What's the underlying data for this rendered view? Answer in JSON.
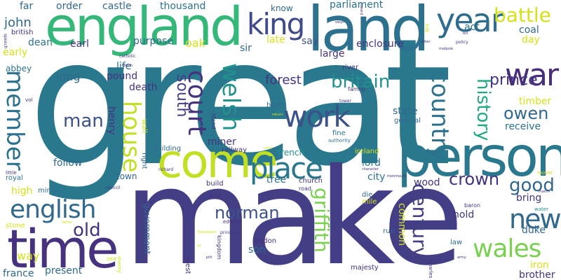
{
  "palette": {
    "dark_purple": "#46327e",
    "purple": "#482878",
    "slate": "#3b528b",
    "steel": "#31688e",
    "teal": "#21918c",
    "sea": "#1f9e89",
    "green": "#35b779",
    "lime": "#6ece58",
    "yellow_green": "#b5de2b",
    "yellow": "#d5e21a"
  },
  "words": [
    {
      "id": "great",
      "text": "great"
    },
    {
      "id": "make",
      "text": "make"
    },
    {
      "id": "england",
      "text": "england"
    },
    {
      "id": "land",
      "text": "land"
    },
    {
      "id": "person",
      "text": "person"
    },
    {
      "id": "come",
      "text": "come"
    },
    {
      "id": "time",
      "text": "time"
    },
    {
      "id": "king",
      "text": "king"
    },
    {
      "id": "year",
      "text": "year"
    },
    {
      "id": "war",
      "text": "war"
    },
    {
      "id": "place",
      "text": "place"
    },
    {
      "id": "work",
      "text": "work"
    },
    {
      "id": "english",
      "text": "english"
    },
    {
      "id": "wales",
      "text": "wales"
    },
    {
      "id": "new",
      "text": "new"
    },
    {
      "id": "battle",
      "text": "battle"
    },
    {
      "id": "country",
      "text": "country"
    },
    {
      "id": "court",
      "text": "court"
    },
    {
      "id": "welsh",
      "text": "welsh"
    },
    {
      "id": "house",
      "text": "house"
    },
    {
      "id": "member",
      "text": "member"
    },
    {
      "id": "britain",
      "text": "britain"
    },
    {
      "id": "man",
      "text": "man"
    },
    {
      "id": "old",
      "text": "old"
    },
    {
      "id": "norman",
      "text": "norman"
    },
    {
      "id": "griffith",
      "text": "griffith"
    },
    {
      "id": "century",
      "text": "century"
    },
    {
      "id": "history",
      "text": "history"
    },
    {
      "id": "prince",
      "text": "prince"
    },
    {
      "id": "owen",
      "text": "owen"
    },
    {
      "id": "crown",
      "text": "crown"
    },
    {
      "id": "good",
      "text": "good"
    },
    {
      "id": "south",
      "text": "south"
    },
    {
      "id": "john",
      "text": "john"
    },
    {
      "id": "far",
      "text": "far"
    },
    {
      "id": "order",
      "text": "order"
    },
    {
      "id": "castle",
      "text": "castle"
    },
    {
      "id": "thousand",
      "text": "thousand"
    },
    {
      "id": "know",
      "text": "know"
    },
    {
      "id": "parliament",
      "text": "parliament"
    },
    {
      "id": "british",
      "text": "british"
    },
    {
      "id": "dean",
      "text": "dean"
    },
    {
      "id": "early",
      "text": "early"
    },
    {
      "id": "earl",
      "text": "earl"
    },
    {
      "id": "purpose",
      "text": "purpose"
    },
    {
      "id": "oak",
      "text": "oak"
    },
    {
      "id": "sir",
      "text": "sir"
    },
    {
      "id": "late",
      "text": "late"
    },
    {
      "id": "say",
      "text": "say"
    },
    {
      "id": "enclosure",
      "text": "enclosure"
    },
    {
      "id": "large",
      "text": "large"
    },
    {
      "id": "act",
      "text": "act"
    },
    {
      "id": "coal",
      "text": "coal"
    },
    {
      "id": "day",
      "text": "day"
    },
    {
      "id": "abbey",
      "text": "abbey"
    },
    {
      "id": "life",
      "text": "life"
    },
    {
      "id": "long",
      "text": "long"
    },
    {
      "id": "pound",
      "text": "pound"
    },
    {
      "id": "death",
      "text": "death"
    },
    {
      "id": "forest",
      "text": "forest"
    },
    {
      "id": "river",
      "text": "river"
    },
    {
      "id": "family",
      "text": "family"
    },
    {
      "id": "state",
      "text": "state"
    },
    {
      "id": "general",
      "text": "general"
    },
    {
      "id": "hotel",
      "text": "hotel"
    },
    {
      "id": "timber",
      "text": "timber"
    },
    {
      "id": "receive",
      "text": "receive"
    },
    {
      "id": "henry",
      "text": "henry"
    },
    {
      "id": "miner",
      "text": "miner"
    },
    {
      "id": "railway",
      "text": "railway"
    },
    {
      "id": "french",
      "text": "french"
    },
    {
      "id": "fine",
      "text": "fine"
    },
    {
      "id": "authority",
      "text": "authority"
    },
    {
      "id": "acre",
      "text": "acre"
    },
    {
      "id": "follow",
      "text": "follow"
    },
    {
      "id": "building",
      "text": "building"
    },
    {
      "id": "lord",
      "text": "lord"
    },
    {
      "id": "ireland",
      "text": "ireland"
    },
    {
      "id": "tree",
      "text": "tree"
    },
    {
      "id": "church",
      "text": "church"
    },
    {
      "id": "city",
      "text": "city"
    },
    {
      "id": "wood",
      "text": "wood"
    },
    {
      "id": "road",
      "text": "road"
    },
    {
      "id": "town",
      "text": "town"
    },
    {
      "id": "build",
      "text": "build"
    },
    {
      "id": "royal",
      "text": "royal"
    },
    {
      "id": "high",
      "text": "high"
    },
    {
      "id": "minister",
      "text": "minister"
    },
    {
      "id": "stone",
      "text": "stone"
    },
    {
      "id": "die",
      "text": "die"
    },
    {
      "id": "mile",
      "text": "mile"
    },
    {
      "id": "soon",
      "text": "soon"
    },
    {
      "id": "edward",
      "text": "edward"
    },
    {
      "id": "baron",
      "text": "baron"
    },
    {
      "id": "bring",
      "text": "bring"
    },
    {
      "id": "hold",
      "text": "hold"
    },
    {
      "id": "duke",
      "text": "duke"
    },
    {
      "id": "way",
      "text": "way"
    },
    {
      "id": "present",
      "text": "present"
    },
    {
      "id": "france",
      "text": "france"
    },
    {
      "id": "government",
      "text": "government"
    },
    {
      "id": "sea",
      "text": "sea"
    },
    {
      "id": "london",
      "text": "london"
    },
    {
      "id": "son",
      "text": "son"
    },
    {
      "id": "majesty",
      "text": "majesty"
    },
    {
      "id": "run",
      "text": "run"
    },
    {
      "id": "common",
      "text": "common"
    },
    {
      "id": "law",
      "text": "law"
    },
    {
      "id": "iron",
      "text": "iron"
    },
    {
      "id": "brother",
      "text": "brother"
    },
    {
      "id": "tower",
      "text": "tower"
    },
    {
      "id": "west",
      "text": "west"
    },
    {
      "id": "kingdom",
      "text": "kingdom"
    },
    {
      "id": "princess",
      "text": "princess"
    },
    {
      "id": "little",
      "text": "little"
    },
    {
      "id": "vol",
      "text": "vol"
    },
    {
      "id": "speech",
      "text": "speech"
    },
    {
      "id": "catholic",
      "text": "catholic"
    },
    {
      "id": "policy",
      "text": "policy"
    },
    {
      "id": "letter",
      "text": "letter"
    },
    {
      "id": "malpole",
      "text": "malpole"
    },
    {
      "id": "hill",
      "text": "hill"
    },
    {
      "id": "reward",
      "text": "reward"
    },
    {
      "id": "wall",
      "text": "wall"
    },
    {
      "id": "right",
      "text": "right"
    },
    {
      "id": "richard",
      "text": "richard"
    },
    {
      "id": "council",
      "text": "council"
    },
    {
      "id": "stand",
      "text": "stand"
    },
    {
      "id": "character",
      "text": "character"
    },
    {
      "id": "monmouth",
      "text": "monmouth"
    },
    {
      "id": "mover",
      "text": "mover"
    },
    {
      "id": "march",
      "text": "march"
    },
    {
      "id": "water",
      "text": "water"
    },
    {
      "id": "enemy",
      "text": "enemy"
    },
    {
      "id": "charles",
      "text": "charles"
    },
    {
      "id": "army",
      "text": "army"
    },
    {
      "id": "george",
      "text": "george"
    },
    {
      "id": "father",
      "text": "father"
    },
    {
      "id": "foundation",
      "text": "foundation"
    },
    {
      "id": "lll",
      "text": "lll"
    },
    {
      "id": "pitt",
      "text": "pitt"
    },
    {
      "id": "owyn",
      "text": "owyn"
    },
    {
      "id": "watch",
      "text": "watch"
    },
    {
      "id": "bill",
      "text": "bill"
    },
    {
      "id": "note",
      "text": "note"
    },
    {
      "id": "return",
      "text": "return"
    }
  ]
}
